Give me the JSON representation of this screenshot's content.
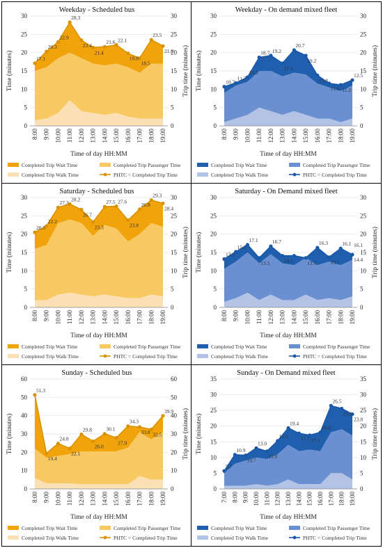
{
  "x_axis_label": "Time of day HH:MM",
  "y_axis_label_left": "Time (minutes)",
  "y_axis_label_right": "Trip time (minutes)",
  "legend": {
    "wait": "Completed Trip Wait Time",
    "passenger": "Completed Trip Passenger Time",
    "walk": "Completed Trip Walk Time",
    "phtc": "PHTC = Completed Trip Time"
  },
  "colors": {
    "bus_wait": "#f0a30a",
    "bus_passenger": "#f8c963",
    "bus_walk": "#fbe0b5",
    "bus_line": "#d99200",
    "od_wait": "#1f5fae",
    "od_passenger": "#6b90d2",
    "od_walk": "#b3c3e6",
    "od_line": "#1a58a8"
  },
  "chart_data": [
    {
      "type": "area",
      "panel": "weekday-bus",
      "title": "Weekday - Scheduled bus",
      "theme": "bus",
      "x": [
        "8:00",
        "9:00",
        "10:00",
        "11:00",
        "12:00",
        "13:00",
        "14:00",
        "15:00",
        "16:00",
        "17:00",
        "18:00",
        "19:00"
      ],
      "ylim": [
        0,
        30
      ],
      "yticks": [
        0,
        5,
        10,
        15,
        20,
        25,
        30
      ],
      "walk": [
        1.5,
        2,
        3.5,
        7,
        4,
        3.5,
        3,
        3.5,
        2.5,
        2,
        2,
        2
      ],
      "passenger": [
        13.5,
        14,
        15,
        13,
        14.5,
        13.5,
        13.5,
        13.5,
        13.5,
        12.5,
        15,
        15
      ],
      "phtc": [
        17.1,
        20.3,
        22.9,
        28.3,
        23.4,
        21.4,
        21.6,
        22.1,
        19.8,
        18.5,
        23.5,
        21.8
      ],
      "labels": [
        "17.1",
        "20.3",
        "22.9",
        "28.3",
        "23.4",
        "21.4",
        "21.6",
        "22.1",
        "19.8",
        "18.5",
        "23.5",
        "21.8"
      ]
    },
    {
      "type": "area",
      "panel": "weekday-od",
      "title": "Weekday - On demand mixed fleet",
      "theme": "od",
      "x": [
        "8:00",
        "9:00",
        "10:00",
        "11:00",
        "12:00",
        "13:00",
        "14:00",
        "15:00",
        "16:00",
        "17:00",
        "18:00",
        "19:00"
      ],
      "ylim": [
        0,
        30
      ],
      "yticks": [
        0,
        5,
        10,
        15,
        20,
        25,
        30
      ],
      "walk": [
        1,
        2,
        3,
        5,
        4,
        3,
        4,
        3,
        2,
        2,
        1,
        2
      ],
      "passenger": [
        8,
        9,
        9,
        10,
        11,
        10.5,
        10.5,
        11,
        9.5,
        8.5,
        8.5,
        9
      ],
      "phtc": [
        10.7,
        11.7,
        13.3,
        18.7,
        19.2,
        17.1,
        20.7,
        19.2,
        13.8,
        11.6,
        11.2,
        12.5
      ],
      "labels": [
        "10.7",
        "11.7",
        "13.3",
        "18.7",
        "19.2",
        "17.1",
        "20.7",
        "19.2",
        "13.8",
        "11.6",
        "11.2",
        "12.5"
      ]
    },
    {
      "type": "area",
      "panel": "saturday-bus",
      "title": "Saturday - Scheduled bus",
      "theme": "bus",
      "x": [
        "8:00",
        "9:00",
        "10:00",
        "11:00",
        "12:00",
        "13:00",
        "14:00",
        "15:00",
        "16:00",
        "17:00",
        "18:00",
        "19:00"
      ],
      "ylim": [
        0,
        30
      ],
      "yticks": [
        0,
        5,
        10,
        15,
        20,
        25,
        30
      ],
      "walk": [
        2,
        2,
        3.5,
        4,
        3.5,
        3,
        3.5,
        3,
        2.5,
        2.5,
        3.5,
        3
      ],
      "passenger": [
        14,
        15,
        19.5,
        20,
        19.5,
        16.5,
        19,
        18.5,
        15.5,
        17.5,
        19.5,
        19
      ],
      "phtc": [
        20.5,
        22.2,
        27.3,
        28.2,
        26.7,
        23.3,
        27.5,
        27.6,
        23.8,
        26.8,
        29.3,
        28.4
      ],
      "labels": [
        "20.5",
        "22.2",
        "27.3",
        "28.2",
        "26.7",
        "23.3",
        "27.5",
        "27.6",
        "23.8",
        "26.8",
        "29.3",
        "28.4"
      ]
    },
    {
      "type": "area",
      "panel": "saturday-od",
      "title": "Saturday - On Demand mixed fleet",
      "theme": "od",
      "x": [
        "8:00",
        "9:00",
        "10:00",
        "11:00",
        "12:00",
        "13:00",
        "14:00",
        "15:00",
        "16:00",
        "17:00",
        "18:00",
        "19:00"
      ],
      "ylim": [
        0,
        30
      ],
      "yticks": [
        0,
        5,
        10,
        15,
        20,
        25,
        30
      ],
      "walk": [
        1.5,
        2.5,
        4,
        2,
        3.5,
        2,
        2,
        3.5,
        2,
        2.5,
        2,
        3
      ],
      "passenger": [
        9,
        10,
        11,
        10,
        11,
        10,
        9.5,
        10,
        9.5,
        10,
        9.5,
        10
      ],
      "phtc": [
        13.2,
        15.2,
        17.1,
        13.5,
        16.7,
        14.1,
        14.1,
        13.5,
        16.3,
        13.7,
        16.1,
        14.4
      ],
      "labels": [
        "13.2",
        "15.2",
        "17.1",
        "13.5",
        "16.7",
        "14.1",
        "",
        "13.5",
        "16.3",
        "13.7",
        "16.1",
        "14.4"
      ],
      "extra_label": "16.1"
    },
    {
      "type": "area",
      "panel": "sunday-bus",
      "title": "Sunday - Scheduled bus",
      "theme": "bus",
      "x": [
        "8:00",
        "9:00",
        "10:00",
        "11:00",
        "12:00",
        "13:00",
        "14:00",
        "15:00",
        "16:00",
        "17:00",
        "18:00",
        "19:00"
      ],
      "ylim": [
        0,
        60
      ],
      "yticks": [
        0,
        10,
        20,
        30,
        40,
        50,
        60
      ],
      "walk": [
        6,
        3,
        3,
        3,
        2.5,
        2.5,
        2.5,
        2.5,
        2.5,
        7,
        5,
        5
      ],
      "passenger": [
        16,
        14,
        15,
        16,
        18,
        18,
        18,
        18,
        20,
        24,
        22,
        26
      ],
      "phtc": [
        51.3,
        19.4,
        24.8,
        22.1,
        29.8,
        26.0,
        30.1,
        27.9,
        34.3,
        33.8,
        32.5,
        39.9
      ],
      "labels": [
        "51.3",
        "19.4",
        "24.8",
        "22.1",
        "29.8",
        "26.0",
        "30.1",
        "27.9",
        "34.3",
        "33.8",
        "32.5",
        "39.9"
      ]
    },
    {
      "type": "area",
      "panel": "sunday-od",
      "title": "Sunday - On Demand mixed fleet",
      "theme": "od",
      "x": [
        "7:00",
        "8:00",
        "9:00",
        "10:00",
        "11:00",
        "12:00",
        "13:00",
        "14:00",
        "15:00",
        "16:00",
        "17:00",
        "18:00",
        "19:00"
      ],
      "ylim": [
        0,
        35
      ],
      "yticks": [
        0,
        5,
        10,
        15,
        20,
        25,
        30,
        35
      ],
      "walk": [
        1,
        1,
        1,
        1.5,
        1,
        1.5,
        3,
        1.5,
        1.5,
        1.5,
        5,
        5,
        3
      ],
      "passenger": [
        4,
        7,
        8,
        8.5,
        8.5,
        9.5,
        11,
        10.5,
        11,
        10.5,
        13,
        14,
        14
      ],
      "phtc": [
        5.7,
        10.9,
        10.7,
        13.0,
        12.0,
        15.3,
        19.4,
        17.7,
        17.1,
        18.0,
        26.5,
        25.6,
        23.8
      ],
      "labels": [
        "5.7",
        "10.9",
        "10.7",
        "13.0",
        "12.0",
        "15.3",
        "19.4",
        "17.7",
        "17.1",
        "18.0",
        "26.5",
        "25.6",
        "23.8"
      ]
    }
  ]
}
